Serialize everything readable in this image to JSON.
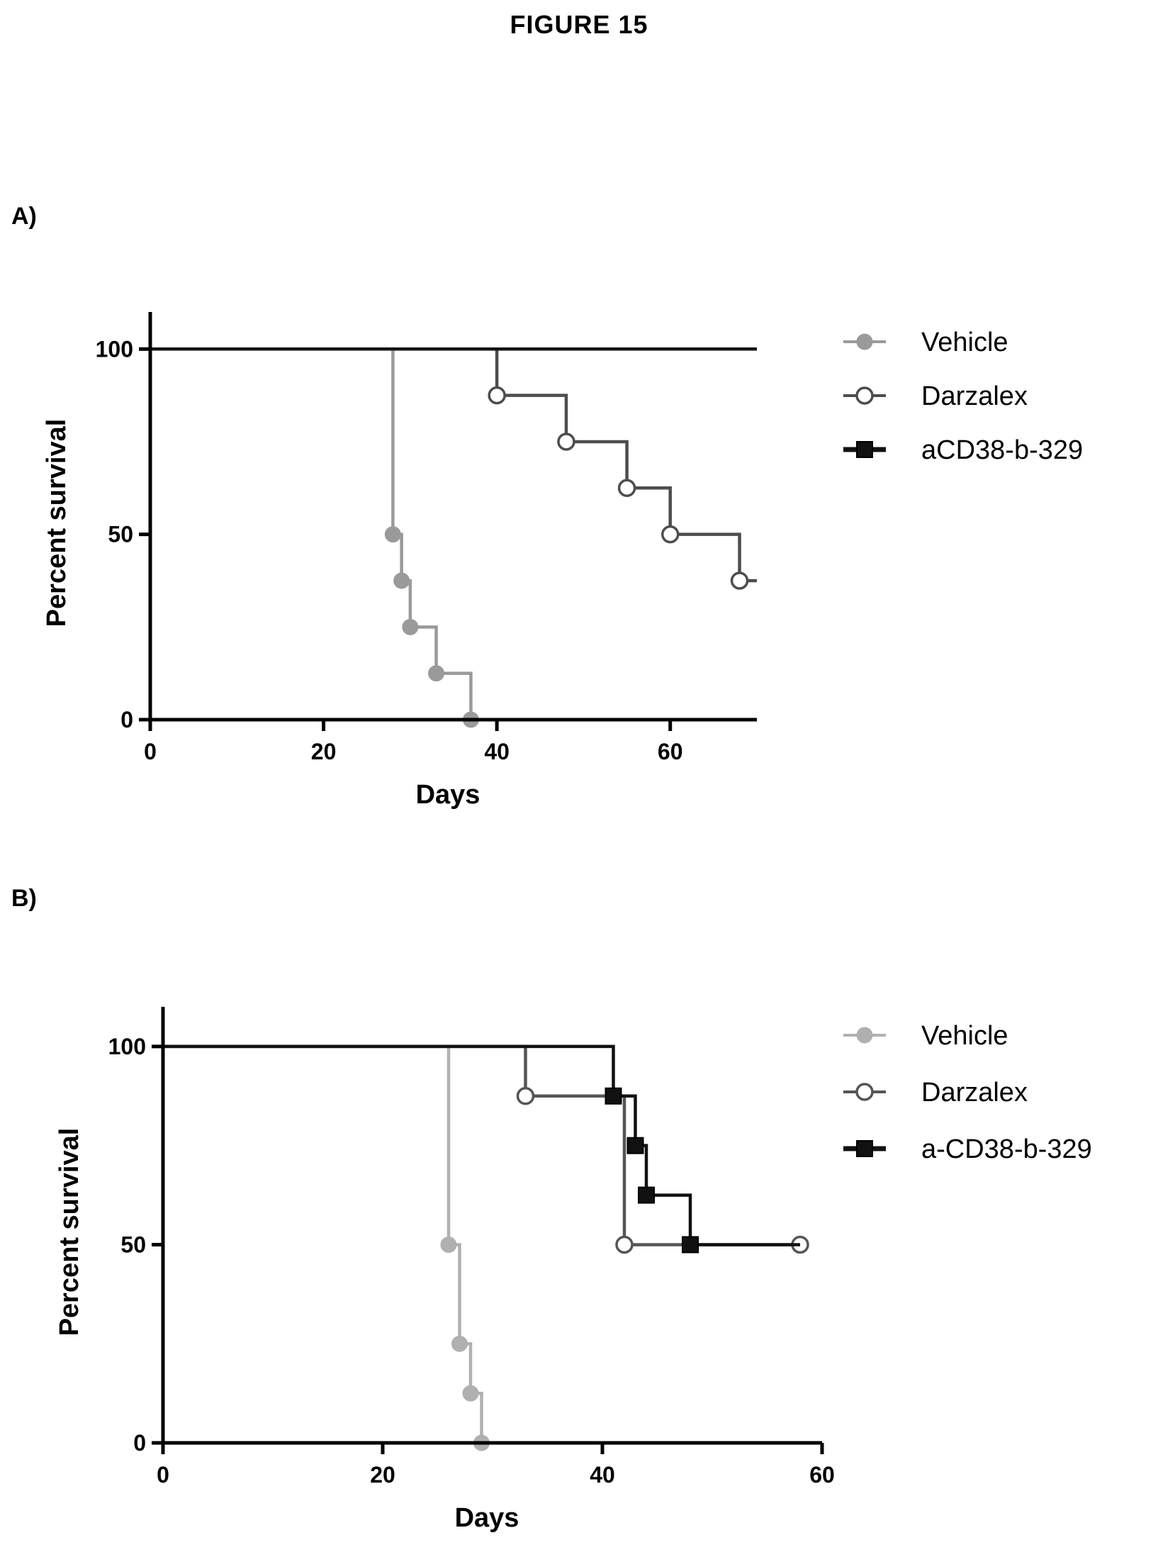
{
  "figure_title": "FIGURE 15",
  "panels": [
    {
      "label": "A)"
    },
    {
      "label": "B)"
    }
  ],
  "chart_data": [
    {
      "type": "line",
      "subtype": "kaplan-meier step",
      "xlabel": "Days",
      "ylabel": "Percent survival",
      "xlim": [
        0,
        70
      ],
      "ylim": [
        0,
        110
      ],
      "xticks": [
        0,
        20,
        40,
        60
      ],
      "yticks": [
        0,
        50,
        100
      ],
      "legend_position": "right",
      "series": [
        {
          "name": "Vehicle",
          "color": "#9a9a9a",
          "marker": "filled-circle",
          "steps": [
            [
              0,
              100
            ],
            [
              28,
              50
            ],
            [
              29,
              37.5
            ],
            [
              30,
              25
            ],
            [
              33,
              12.5
            ],
            [
              37,
              0
            ],
            [
              70,
              0
            ]
          ],
          "markers": [
            [
              28,
              50
            ],
            [
              29,
              37.5
            ],
            [
              30,
              25
            ],
            [
              33,
              12.5
            ],
            [
              37,
              0
            ]
          ]
        },
        {
          "name": "Darzalex",
          "color": "#4d4d4d",
          "marker": "open-circle",
          "steps": [
            [
              0,
              100
            ],
            [
              40,
              87.5
            ],
            [
              48,
              75
            ],
            [
              55,
              62.5
            ],
            [
              60,
              50
            ],
            [
              68,
              37.5
            ],
            [
              70,
              37.5
            ]
          ],
          "markers": [
            [
              40,
              87.5
            ],
            [
              48,
              75
            ],
            [
              55,
              62.5
            ],
            [
              60,
              50
            ],
            [
              68,
              37.5
            ]
          ]
        },
        {
          "name": "aCD38-b-329",
          "color": "#111111",
          "marker": "filled-square",
          "steps": [
            [
              0,
              100
            ],
            [
              70,
              100
            ]
          ],
          "markers": []
        }
      ]
    },
    {
      "type": "line",
      "subtype": "kaplan-meier step",
      "xlabel": "Days",
      "ylabel": "Percent survival",
      "xlim": [
        0,
        60
      ],
      "ylim": [
        0,
        110
      ],
      "xticks": [
        0,
        20,
        40,
        60
      ],
      "yticks": [
        0,
        50,
        100
      ],
      "legend_position": "right",
      "series": [
        {
          "name": "Vehicle",
          "color": "#b0b0b0",
          "marker": "filled-circle",
          "steps": [
            [
              0,
              100
            ],
            [
              26,
              50
            ],
            [
              27,
              25
            ],
            [
              28,
              12.5
            ],
            [
              29,
              0
            ]
          ],
          "markers": [
            [
              26,
              50
            ],
            [
              27,
              25
            ],
            [
              28,
              12.5
            ],
            [
              29,
              0
            ]
          ]
        },
        {
          "name": "Darzalex",
          "color": "#555555",
          "marker": "open-circle",
          "steps": [
            [
              0,
              100
            ],
            [
              33,
              87.5
            ],
            [
              42,
              50
            ],
            [
              58,
              50
            ]
          ],
          "markers": [
            [
              33,
              87.5
            ],
            [
              42,
              50
            ],
            [
              58,
              50
            ]
          ]
        },
        {
          "name": "a-CD38-b-329",
          "color": "#111111",
          "marker": "filled-square",
          "steps": [
            [
              0,
              100
            ],
            [
              41,
              87.5
            ],
            [
              43,
              75
            ],
            [
              44,
              62.5
            ],
            [
              48,
              50
            ],
            [
              58,
              50
            ]
          ],
          "markers": [
            [
              41,
              87.5
            ],
            [
              43,
              75
            ],
            [
              44,
              62.5
            ],
            [
              48,
              50
            ]
          ]
        }
      ]
    }
  ]
}
